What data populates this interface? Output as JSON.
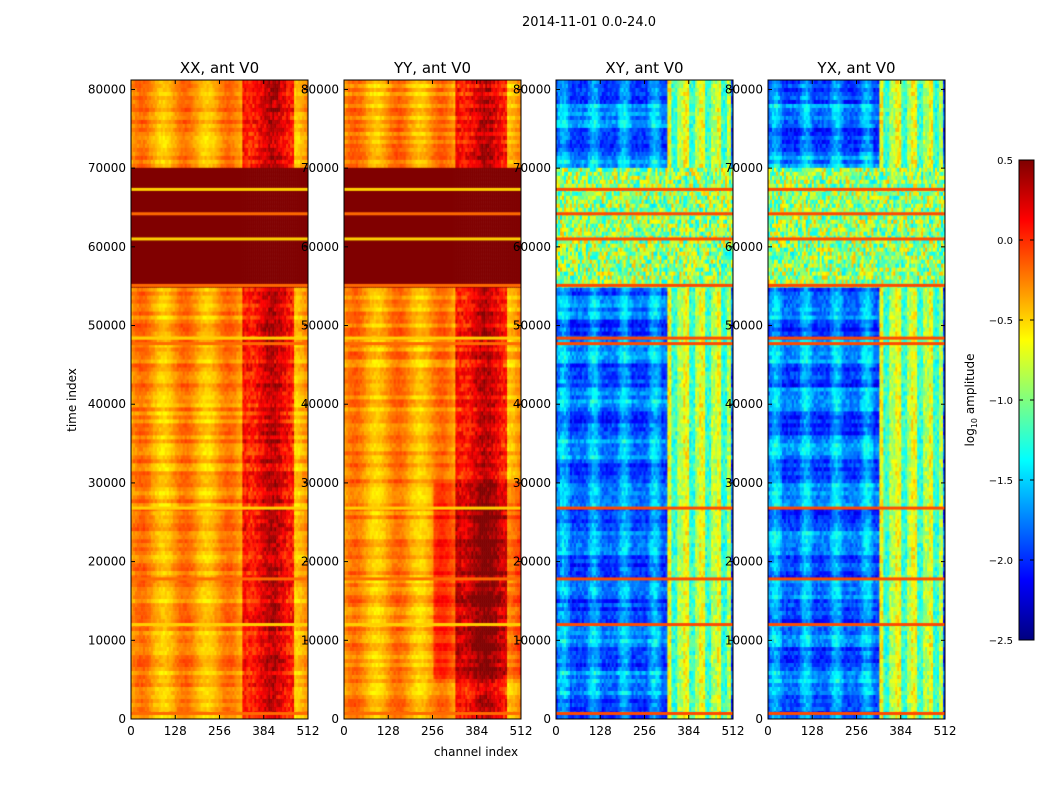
{
  "figure": {
    "suptitle": "2014-11-01 0.0-24.0",
    "xlabel": "channel index",
    "ylabel": "time index"
  },
  "chart_data": {
    "type": "heatmap",
    "panels": [
      {
        "title": "XX, ant V0",
        "style": "auto"
      },
      {
        "title": "YY, ant V0",
        "style": "auto"
      },
      {
        "title": "XY, ant V0",
        "style": "cross"
      },
      {
        "title": "YX, ant V0",
        "style": "cross"
      }
    ],
    "x_ticks": [
      "0",
      "128",
      "256",
      "384",
      "512"
    ],
    "x_tick_values": [
      0,
      128,
      256,
      384,
      512
    ],
    "xlim": [
      0,
      512
    ],
    "y_ticks": [
      "0",
      "10000",
      "20000",
      "30000",
      "40000",
      "50000",
      "60000",
      "70000",
      "80000"
    ],
    "y_tick_values": [
      0,
      10000,
      20000,
      30000,
      40000,
      50000,
      60000,
      70000,
      80000
    ],
    "ylim": [
      0,
      81200
    ],
    "colorbar": {
      "label_prefix": "log",
      "label_sub": "10",
      "label_suffix": " amplitude",
      "ticks": [
        "0.5",
        "0.0",
        "−0.5",
        "−1.0",
        "−1.5",
        "−2.0",
        "−2.5"
      ],
      "tick_values": [
        0.5,
        0.0,
        -0.5,
        -1.0,
        -1.5,
        -2.0,
        -2.5
      ],
      "range": [
        -2.5,
        0.5
      ],
      "colormap": "jet"
    },
    "features": {
      "saturated_block_time": [
        55000,
        69800
      ],
      "noisy_block_time_cross": [
        54800,
        69800
      ],
      "flagged_rows_time": [
        700,
        12000,
        17800,
        26800,
        47700,
        48400,
        55100,
        61000,
        64200,
        67300
      ],
      "bright_channel_band": [
        320,
        512
      ]
    }
  }
}
